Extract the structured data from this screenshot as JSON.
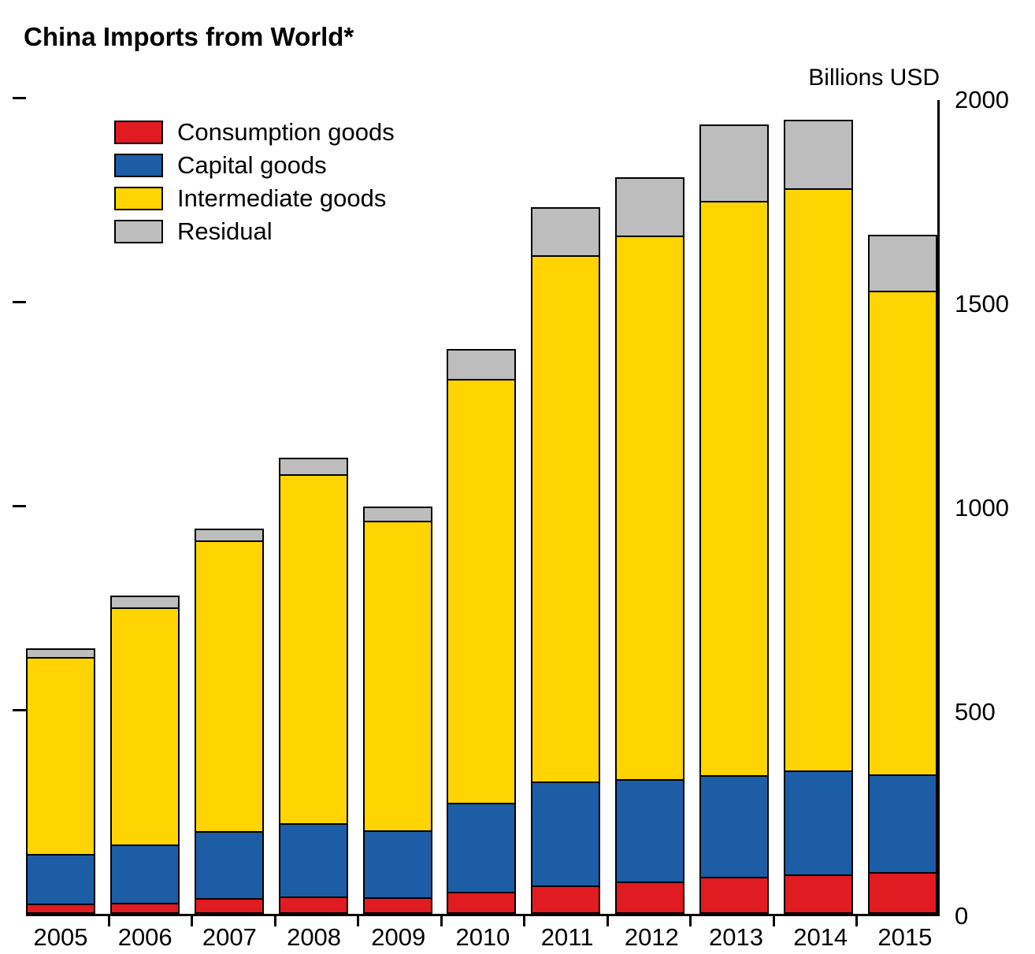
{
  "title": "China Imports from World*",
  "unit_label": "Billions USD",
  "colors": {
    "consumption": "#e11b22",
    "capital": "#1c5da6",
    "intermediate": "#ffd400",
    "residual": "#bdbdbd",
    "bar_outline": "#000000"
  },
  "chart_data": {
    "type": "bar",
    "stacked": true,
    "title": "China Imports from World*",
    "ylabel": "Billions USD",
    "ylim": [
      0,
      2000
    ],
    "yticks": [
      0,
      500,
      1000,
      1500,
      2000
    ],
    "grid": false,
    "legend_position": "top-left",
    "axis_labels_side": "right",
    "categories": [
      "2005",
      "2006",
      "2007",
      "2008",
      "2009",
      "2010",
      "2011",
      "2012",
      "2013",
      "2014",
      "2015"
    ],
    "series": [
      {
        "name": "Consumption goods",
        "color_key": "consumption",
        "values": [
          25,
          27,
          39,
          42,
          40,
          55,
          70,
          80,
          90,
          97,
          102
        ]
      },
      {
        "name": "Capital goods",
        "color_key": "capital",
        "values": [
          125,
          147,
          168,
          183,
          168,
          221,
          258,
          254,
          253,
          259,
          243
        ]
      },
      {
        "name": "Intermediate goods",
        "color_key": "intermediate",
        "values": [
          487,
          585,
          715,
          860,
          763,
          1043,
          1293,
          1336,
          1412,
          1430,
          1190
        ]
      },
      {
        "name": "Residual",
        "color_key": "residual",
        "values": [
          25,
          32,
          34,
          44,
          39,
          77,
          122,
          147,
          191,
          171,
          141
        ]
      }
    ],
    "totals": [
      662,
      791,
      956,
      1129,
      1010,
      1396,
      1743,
      1817,
      1946,
      1957,
      1676
    ]
  }
}
